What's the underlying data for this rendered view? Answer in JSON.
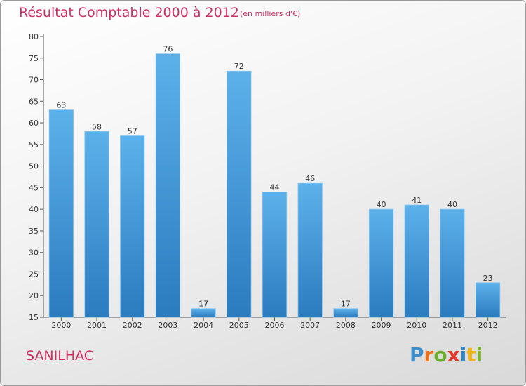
{
  "chart_data": {
    "type": "bar",
    "title": "Résultat Comptable 2000 à 2012",
    "subtitle": "(en milliers d'€)",
    "categories": [
      "2000",
      "2001",
      "2002",
      "2003",
      "2004",
      "2005",
      "2006",
      "2007",
      "2008",
      "2009",
      "2010",
      "2011",
      "2012"
    ],
    "values": [
      63,
      58,
      57,
      76,
      17,
      72,
      44,
      46,
      17,
      40,
      41,
      40,
      23
    ],
    "ylim": [
      15,
      80
    ],
    "yticks": [
      15,
      20,
      25,
      30,
      35,
      40,
      45,
      50,
      55,
      60,
      65,
      70,
      75,
      80
    ],
    "grid": false,
    "bar_color": "#4a9fde"
  },
  "commune": "SANILHAC",
  "brand": {
    "letters": [
      "P",
      "r",
      "o",
      "x",
      "i",
      "t",
      "i"
    ]
  },
  "colors": {
    "title": "#cc2f62",
    "bar_top": "#5aafe8",
    "bar_bottom": "#2f7fc0"
  }
}
